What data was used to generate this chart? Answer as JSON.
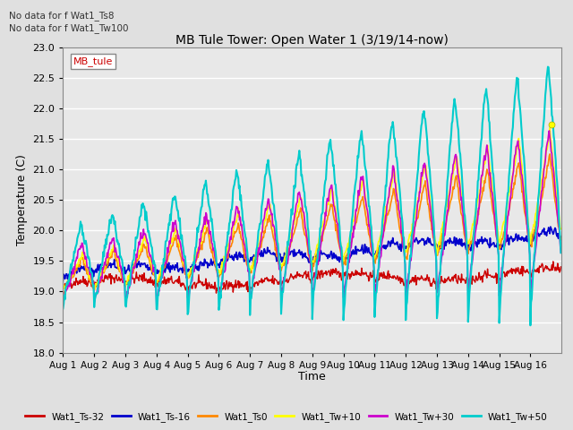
{
  "title": "MB Tule Tower: Open Water 1 (3/19/14-now)",
  "ylabel": "Temperature (C)",
  "xlabel": "Time",
  "ylim": [
    18.0,
    23.0
  ],
  "yticks": [
    18.0,
    18.5,
    19.0,
    19.5,
    20.0,
    20.5,
    21.0,
    21.5,
    22.0,
    22.5,
    23.0
  ],
  "x_labels": [
    "Aug 1",
    "Aug 2",
    "Aug 3",
    "Aug 4",
    "Aug 5",
    "Aug 6",
    "Aug 7",
    "Aug 8",
    "Aug 9",
    "Aug 10",
    "Aug 11",
    "Aug 12",
    "Aug 13",
    "Aug 14",
    "Aug 15",
    "Aug 16"
  ],
  "n_days": 16,
  "no_data_text": [
    "No data for f Wat1_Ts8",
    "No data for f Wat1_Tw100"
  ],
  "legend_box_label": "MB_tule",
  "background_color": "#e0e0e0",
  "plot_bg_color": "#e8e8e8",
  "grid_color": "#ffffff",
  "lines": {
    "Wat1_Ts-32": {
      "color": "#cc0000",
      "lw": 1.0
    },
    "Wat1_Ts-16": {
      "color": "#0000cc",
      "lw": 1.2
    },
    "Wat1_Ts0": {
      "color": "#ff8800",
      "lw": 1.2
    },
    "Wat1_Tw+10": {
      "color": "#ffff00",
      "lw": 1.2
    },
    "Wat1_Tw+30": {
      "color": "#cc00cc",
      "lw": 1.2
    },
    "Wat1_Tw+50": {
      "color": "#00cccc",
      "lw": 1.5
    }
  }
}
